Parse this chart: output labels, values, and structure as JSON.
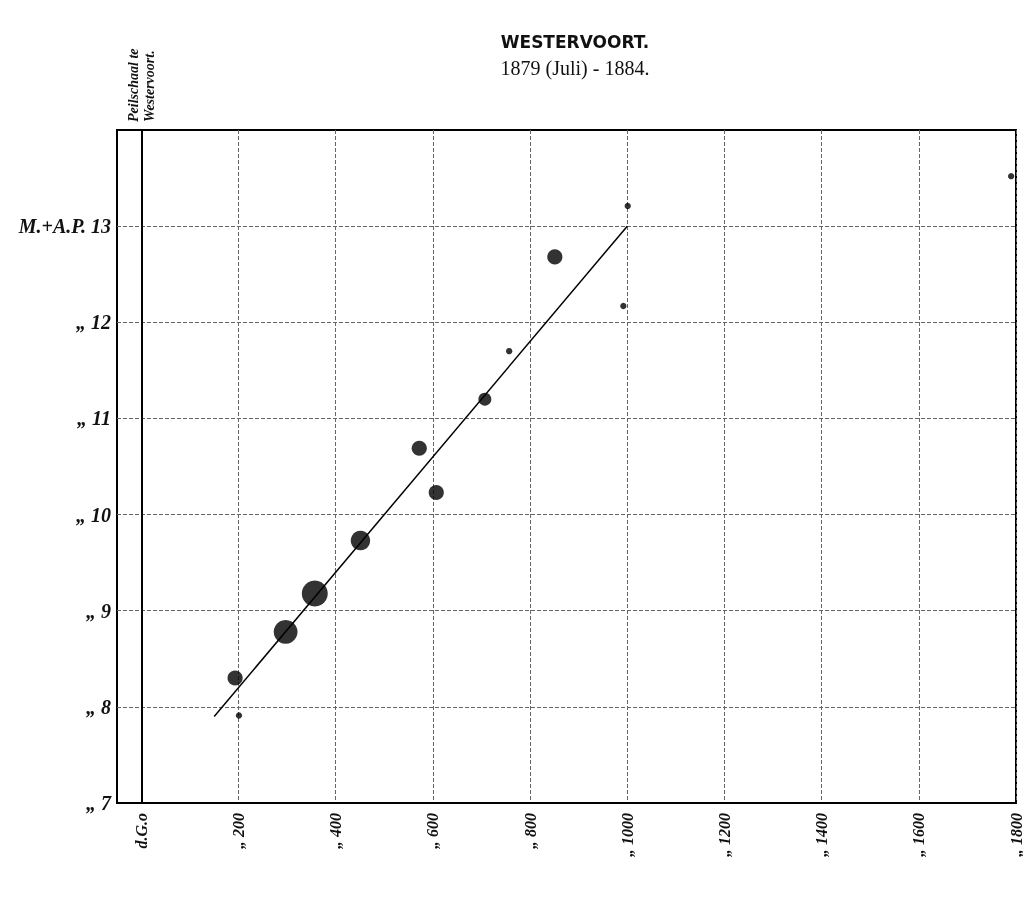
{
  "chart_data": {
    "type": "bubble",
    "title": "WESTERVOORT.",
    "subtitle": "1879 (Juli) - 1884.",
    "ylabel": "Peilschaal te\nWestervoort.",
    "xlim": [
      -50,
      1800
    ],
    "xticks": [
      {
        "value": 0,
        "label": "d.G.o"
      },
      {
        "value": 200,
        "label": "„ 200"
      },
      {
        "value": 400,
        "label": "„ 400"
      },
      {
        "value": 600,
        "label": "„ 600"
      },
      {
        "value": 800,
        "label": "„ 800"
      },
      {
        "value": 1000,
        "label": "„ 1000"
      },
      {
        "value": 1200,
        "label": "„ 1200"
      },
      {
        "value": 1400,
        "label": "„ 1400"
      },
      {
        "value": 1600,
        "label": "„ 1600"
      },
      {
        "value": 1800,
        "label": "„ 1800"
      }
    ],
    "ylim": [
      7,
      14
    ],
    "yticks": [
      {
        "value": 7,
        "label": "„ 7"
      },
      {
        "value": 8,
        "label": "„ 8"
      },
      {
        "value": 9,
        "label": "„ 9"
      },
      {
        "value": 10,
        "label": "„ 10"
      },
      {
        "value": 11,
        "label": "„ 11"
      },
      {
        "value": 12,
        "label": "„ 12"
      },
      {
        "value": 13,
        "label": "M.+A.P. 13"
      }
    ],
    "grid": true,
    "marker": "circle",
    "series": [
      {
        "type": "bubble",
        "color": "#000000",
        "x": [
          193,
          201,
          297,
          357,
          451,
          572,
          607,
          707,
          757,
          851,
          992,
          1001,
          1790
        ],
        "values": [
          8.3,
          7.91,
          8.78,
          9.18,
          9.73,
          10.69,
          10.23,
          11.2,
          11.7,
          12.68,
          12.17,
          13.21,
          13.52
        ],
        "sizes": [
          0.34,
          0.06,
          0.84,
          1,
          0.56,
          0.34,
          0.34,
          0.25,
          0.06,
          0.34,
          0.06,
          0.06,
          0.06
        ]
      },
      {
        "type": "line",
        "color": "#000000",
        "x": [
          150,
          1000
        ],
        "values": [
          7.9,
          13.0
        ],
        "marker": "none",
        "line_style": "solid"
      }
    ]
  }
}
